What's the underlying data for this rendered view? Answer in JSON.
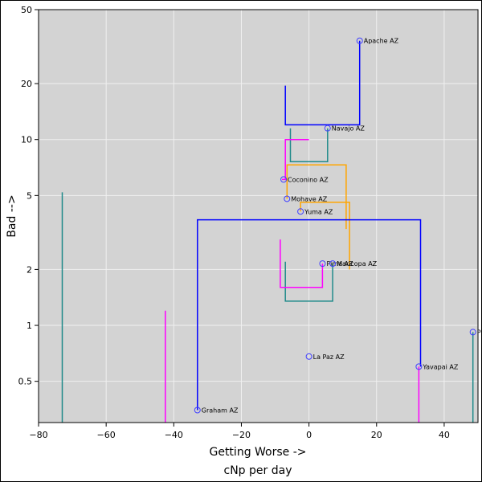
{
  "chart_data": {
    "type": "scatter",
    "title": "",
    "xlabel": "Getting Worse ->",
    "xlabel2": "cNp per day",
    "ylabel": "Bad -->",
    "xlim": [
      -80,
      50
    ],
    "ylim": [
      0.3,
      50
    ],
    "yscale": "log",
    "grid": true,
    "legend": "none",
    "colors": {
      "plot_bg": "#d3d3d3",
      "grid": "#f0f0f0",
      "point": "#4040ff",
      "blue": "#0000ff",
      "teal": "#1f8a8a",
      "magenta": "#ff00ff",
      "orange": "#ffa500"
    },
    "x_ticks": [
      {
        "value": -80,
        "label": "−80"
      },
      {
        "value": -60,
        "label": "−60"
      },
      {
        "value": -40,
        "label": "−40"
      },
      {
        "value": -20,
        "label": "−20"
      },
      {
        "value": 0,
        "label": "0"
      },
      {
        "value": 20,
        "label": "20"
      },
      {
        "value": 40,
        "label": "40"
      }
    ],
    "y_ticks": [
      {
        "value": 0.5,
        "label": "0.5"
      },
      {
        "value": 1,
        "label": "1"
      },
      {
        "value": 2,
        "label": "2"
      },
      {
        "value": 5,
        "label": "5"
      },
      {
        "value": 10,
        "label": "10"
      },
      {
        "value": 20,
        "label": "20"
      },
      {
        "value": 50,
        "label": "50"
      }
    ],
    "points": [
      {
        "name": "Apache AZ",
        "x": 15,
        "y": 34
      },
      {
        "name": "Navajo AZ",
        "x": 5.5,
        "y": 11.5
      },
      {
        "name": "Coconino AZ",
        "x": -7.5,
        "y": 6.1
      },
      {
        "name": "Mohave AZ",
        "x": -6.5,
        "y": 4.8
      },
      {
        "name": "Yuma AZ",
        "x": -2.5,
        "y": 4.1
      },
      {
        "name": "Pima AZ",
        "x": 4,
        "y": 2.15
      },
      {
        "name": "Maricopa AZ",
        "x": 7,
        "y": 2.15
      },
      {
        "name": "La Paz AZ",
        "x": 0,
        "y": 0.68
      },
      {
        "name": "Yavapai AZ",
        "x": 32.5,
        "y": 0.6
      },
      {
        "name": "Graham AZ",
        "x": -33,
        "y": 0.35
      },
      {
        "name": "P",
        "x": 48.5,
        "y": 0.92
      }
    ],
    "segments": [
      {
        "color": "blue",
        "x": [
          -7,
          -7,
          15,
          15
        ],
        "y": [
          19.5,
          12,
          12,
          34
        ]
      },
      {
        "color": "teal",
        "x": [
          -5.5,
          -5.5,
          5.5,
          5.5
        ],
        "y": [
          11.5,
          7.6,
          7.6,
          11.5
        ]
      },
      {
        "color": "magenta",
        "x": [
          0,
          -7,
          -7,
          -8
        ],
        "y": [
          10,
          10,
          6.1,
          6.1
        ]
      },
      {
        "color": "orange",
        "x": [
          -6.5,
          -6.5,
          11,
          11
        ],
        "y": [
          4.8,
          7.3,
          7.3,
          3.3
        ]
      },
      {
        "color": "orange",
        "x": [
          -2.5,
          -2.5,
          12,
          12
        ],
        "y": [
          4.1,
          4.6,
          4.6,
          2
        ]
      },
      {
        "color": "blue",
        "x": [
          -33,
          -33,
          33,
          33
        ],
        "y": [
          0.35,
          3.7,
          3.7,
          0.6
        ]
      },
      {
        "color": "teal",
        "x": [
          -7,
          -7,
          7,
          7
        ],
        "y": [
          2.2,
          1.35,
          1.35,
          2.15
        ]
      },
      {
        "color": "magenta",
        "x": [
          -8.5,
          -8.5,
          4,
          4
        ],
        "y": [
          2.9,
          1.6,
          1.6,
          2.15
        ]
      },
      {
        "color": "teal",
        "x": [
          -73,
          -73
        ],
        "y": [
          5.2,
          0.3
        ]
      },
      {
        "color": "magenta",
        "x": [
          -42.5,
          -42.5
        ],
        "y": [
          1.2,
          0.3
        ]
      },
      {
        "color": "magenta",
        "x": [
          32.5,
          32.5
        ],
        "y": [
          0.6,
          0.3
        ]
      },
      {
        "color": "teal",
        "x": [
          48.5,
          48.5
        ],
        "y": [
          0.92,
          0.3
        ]
      }
    ]
  }
}
